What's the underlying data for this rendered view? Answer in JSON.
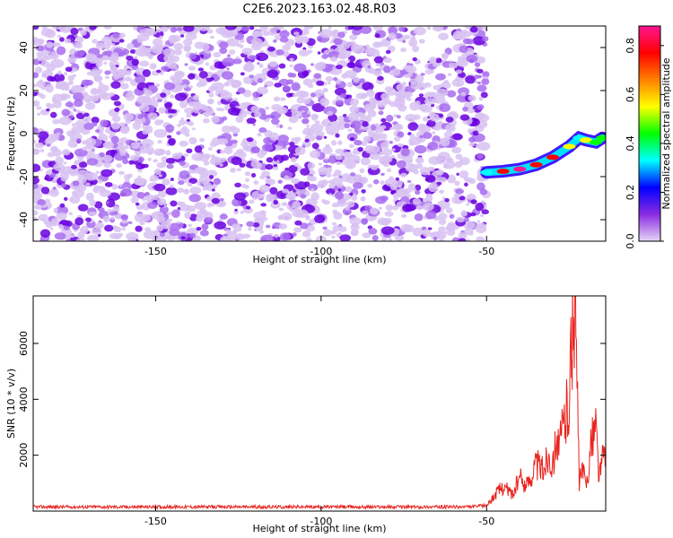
{
  "title": "C2E6.2023.163.02.48.R03",
  "colors": {
    "speckle_light": "#d8c2f2",
    "speckle_dark": "#6a00e0",
    "snr_line": "#e8231e",
    "axis": "#000000"
  },
  "colorbar": {
    "label": "Normalized spectral amplitude",
    "ticks": [
      "0.0",
      "0.2",
      "0.4",
      "0.6",
      "0.8"
    ],
    "stops": [
      "#e6d5f5",
      "#8a2be2",
      "#0000ff",
      "#00ffff",
      "#00ff00",
      "#ffff00",
      "#ff8000",
      "#ff0000",
      "#ff1493"
    ]
  },
  "chart_data": [
    {
      "type": "heatmap",
      "title": "C2E6.2023.163.02.48.R03",
      "xlabel": "Height of straight line (km)",
      "ylabel": "Frequency (Hz)",
      "xlim": [
        -187,
        -14
      ],
      "ylim": [
        -50,
        50
      ],
      "xticks": [
        -150,
        -100,
        -50
      ],
      "xtick_labels": [
        "-150",
        "-100",
        "-50"
      ],
      "yticks": [
        -40,
        -20,
        0,
        20,
        40
      ],
      "ytick_labels": [
        "-40",
        "-20",
        "0",
        "20",
        "40"
      ],
      "noise_region_x": [
        -187,
        -50
      ],
      "signal_trace": {
        "x": [
          -50,
          -45,
          -40,
          -35,
          -30,
          -25,
          -22,
          -20,
          -17,
          -15
        ],
        "y": [
          -18,
          -17.5,
          -16.5,
          -14.5,
          -11,
          -6,
          -2,
          -3,
          -4,
          -2
        ],
        "amplitude": [
          0.3,
          0.8,
          0.85,
          0.8,
          0.75,
          0.55,
          0.35,
          0.5,
          0.4,
          0.45
        ]
      },
      "colorbar_range": [
        0,
        0.88
      ]
    },
    {
      "type": "line",
      "xlabel": "Height of straight line (km)",
      "ylabel": "SNR (10 * v/v)",
      "xlim": [
        -187,
        -14
      ],
      "ylim": [
        0,
        7700
      ],
      "xticks": [
        -150,
        -100,
        -50
      ],
      "xtick_labels": [
        "-150",
        "-100",
        "-50"
      ],
      "yticks": [
        2000,
        4000,
        6000
      ],
      "ytick_labels": [
        "2000",
        "4000",
        "6000"
      ],
      "series": [
        {
          "x": [
            -187,
            -170,
            -150,
            -130,
            -110,
            -90,
            -70,
            -55,
            -50,
            -48,
            -45,
            -42,
            -40,
            -38,
            -35,
            -33,
            -31,
            -30,
            -29,
            -28,
            -27,
            -26,
            -25,
            -24.5,
            -24,
            -23.5,
            -23,
            -22,
            -21,
            -20,
            -19,
            -18,
            -17,
            -16,
            -15,
            -14
          ],
          "y": [
            150,
            150,
            150,
            150,
            150,
            150,
            150,
            150,
            200,
            500,
            900,
            600,
            1200,
            900,
            1700,
            1500,
            2100,
            1500,
            2800,
            2200,
            3000,
            3500,
            4200,
            5600,
            6300,
            7700,
            6400,
            1000,
            1500,
            900,
            1700,
            2700,
            3100,
            1200,
            1800,
            2500
          ],
          "color": "#e8231e"
        }
      ]
    }
  ]
}
